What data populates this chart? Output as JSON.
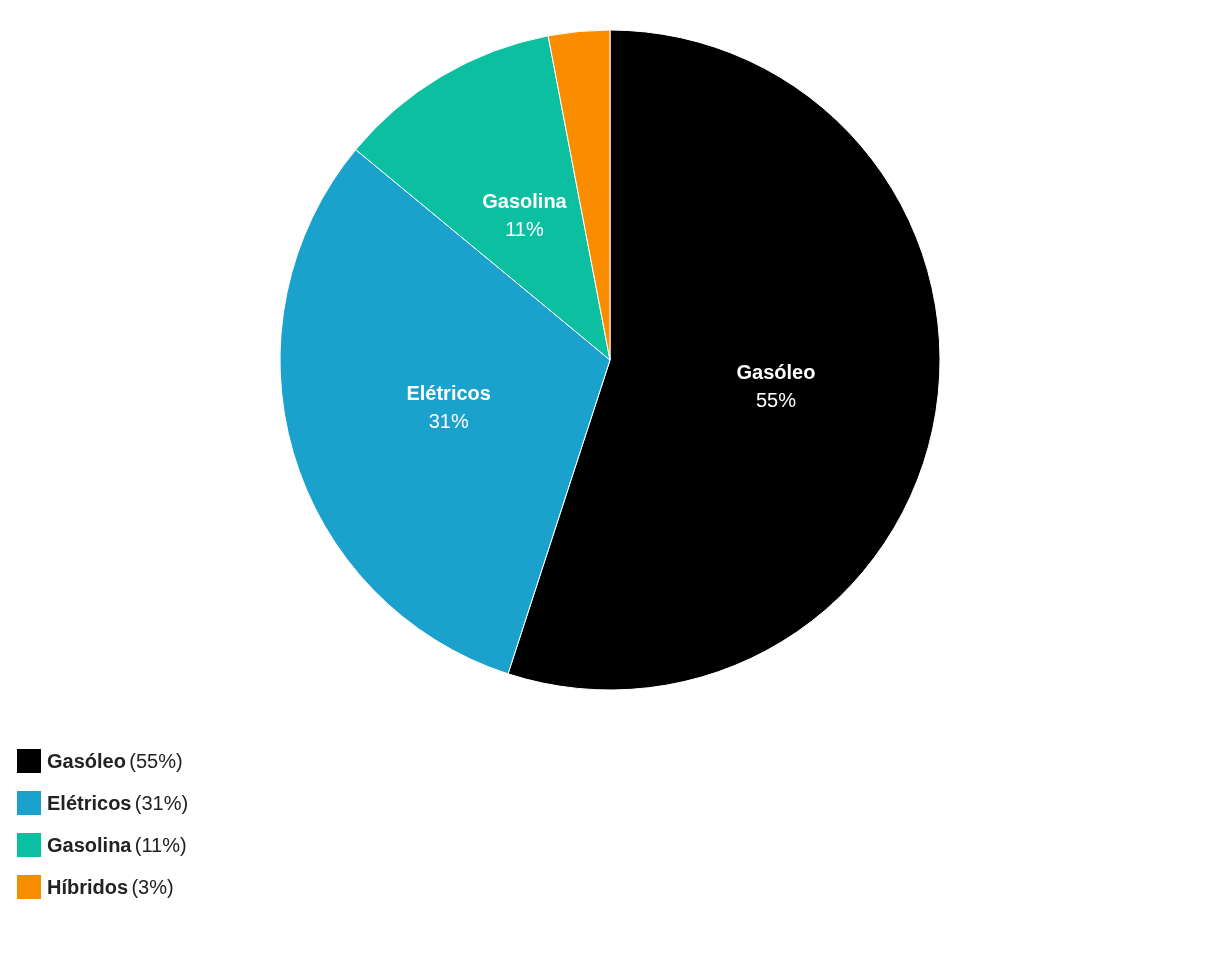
{
  "chart_data": {
    "type": "pie",
    "categories": [
      "Gasóleo",
      "Elétricos",
      "Gasolina",
      "Híbridos"
    ],
    "values": [
      55,
      31,
      11,
      3
    ],
    "colors": [
      "#000000",
      "#1aa1cc",
      "#0bbfa0",
      "#fa8c00"
    ],
    "value_labels": [
      "55%",
      "31%",
      "11%",
      null
    ],
    "annotations": [
      "(55%)",
      "(31%)",
      "(11%)",
      "(3%)"
    ],
    "legend": "bottom left"
  }
}
